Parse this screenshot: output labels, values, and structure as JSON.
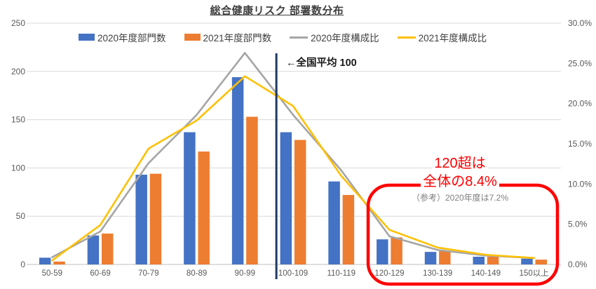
{
  "title": "総合健康リスク 部署数分布",
  "annotations": {
    "national_average": "←全国平均 100",
    "highlight_line1": "120超は",
    "highlight_line2": "全体の8.4%",
    "highlight_note": "（参考）2020年度は7.2%"
  },
  "colors": {
    "bar_2020": "#4472C4",
    "bar_2021": "#ED7D31",
    "line_2020": "#A5A5A5",
    "line_2021": "#FFC000",
    "national_average_line": "#1F3864",
    "highlight": "#FF0000",
    "note_gray": "#7F7F7F",
    "gridline": "#D9D9D9",
    "axis_line": "#BFBFBF",
    "tick_label": "#595959"
  },
  "chart_data": {
    "type": "combo-bar-line",
    "title": "総合健康リスク 部署数分布",
    "categories": [
      "50-59",
      "60-69",
      "70-79",
      "80-89",
      "90-99",
      "100-109",
      "110-119",
      "120-129",
      "130-139",
      "140-149",
      "150以上"
    ],
    "series": [
      {
        "name": "2020年度部門数",
        "type": "bar",
        "axis": "left",
        "color": "#4472C4",
        "values": [
          7,
          30,
          93,
          137,
          194,
          137,
          86,
          26,
          13,
          8,
          6
        ]
      },
      {
        "name": "2021年度部門数",
        "type": "bar",
        "axis": "left",
        "color": "#ED7D31",
        "values": [
          3,
          32,
          94,
          117,
          153,
          129,
          72,
          28,
          14,
          8,
          5
        ]
      },
      {
        "name": "2020年度構成比",
        "type": "line",
        "axis": "right",
        "color": "#A5A5A5",
        "values": [
          0.9,
          4.1,
          12.6,
          18.6,
          26.3,
          18.6,
          11.7,
          3.5,
          1.8,
          1.1,
          0.8
        ]
      },
      {
        "name": "2021年度構成比",
        "type": "line",
        "axis": "right",
        "color": "#FFC000",
        "values": [
          0.5,
          4.9,
          14.4,
          17.9,
          23.4,
          19.7,
          11.0,
          4.3,
          2.1,
          1.2,
          0.8
        ]
      }
    ],
    "left_axis": {
      "ticks": [
        0,
        50,
        100,
        150,
        200,
        250
      ],
      "max": 250
    },
    "right_axis": {
      "ticks": [
        0,
        5,
        10,
        15,
        20,
        25,
        30
      ],
      "max": 30,
      "format": "percent1"
    },
    "grid": true,
    "legend_position": "top",
    "national_average_marker": {
      "value": 100,
      "after_category_index": 4
    },
    "highlight_region": {
      "from_category": "120-129",
      "to_category": "150以上"
    }
  }
}
